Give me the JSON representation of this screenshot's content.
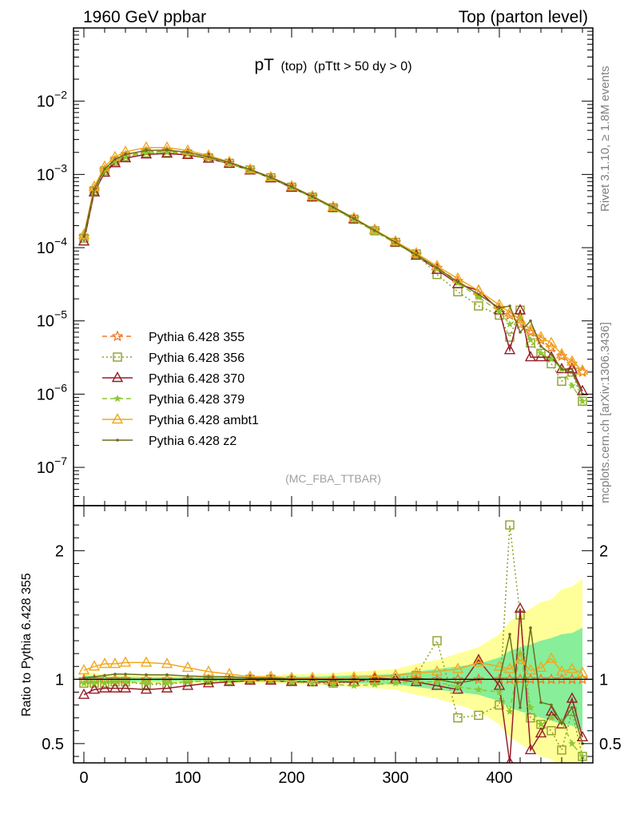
{
  "header": {
    "left": "1960 GeV ppbar",
    "right": "Top (parton level)"
  },
  "plot_title": {
    "main": "pT",
    "sub1": "(top)",
    "sub2": "(pTtt > 50 dy > 0)"
  },
  "side": {
    "rivet": "Rivet 3.1.10, ≥ 1.8M events",
    "mcplots": "mcplots.cern.ch [arXiv:1306.3436]"
  },
  "watermark": "(MC_FBA_TTBAR)",
  "colors": {
    "355": "#f07828",
    "356": "#8ca028",
    "370": "#961e28",
    "379": "#8cc832",
    "ambt1": "#f0a81e",
    "z2": "#6e6e1e",
    "band_yellow": "#ffff99",
    "band_green": "#88ee99"
  },
  "chart_data": [
    {
      "type": "line",
      "panel": "main",
      "yscale": "log",
      "xlim": [
        -10,
        490
      ],
      "ylim": [
        3e-08,
        0.1
      ],
      "yticks": [
        {
          "value": 1e-07,
          "mant": "10",
          "exp": "−7"
        },
        {
          "value": 1e-06,
          "mant": "10",
          "exp": "−6"
        },
        {
          "value": 1e-05,
          "mant": "10",
          "exp": "−5"
        },
        {
          "value": 0.0001,
          "mant": "10",
          "exp": "−4"
        },
        {
          "value": 0.001,
          "mant": "10",
          "exp": "−3"
        },
        {
          "value": 0.01,
          "mant": "10",
          "exp": "−2"
        }
      ],
      "x": [
        0,
        10,
        20,
        30,
        40,
        60,
        80,
        100,
        120,
        140,
        160,
        180,
        200,
        220,
        240,
        260,
        280,
        300,
        320,
        340,
        360,
        380,
        400,
        410,
        420,
        430,
        440,
        450,
        460,
        470,
        480
      ],
      "series": [
        {
          "name": "Pythia 6.428 355",
          "key": "355",
          "line": "dashed",
          "marker": "star",
          "values": [
            0.00014,
            0.00062,
            0.00115,
            0.00155,
            0.0018,
            0.00205,
            0.00208,
            0.00195,
            0.0017,
            0.00143,
            0.00115,
            0.0009,
            0.00068,
            0.0005,
            0.00036,
            0.00025,
            0.000172,
            0.000118,
            8e-05,
            5.3e-05,
            3.5e-05,
            2.3e-05,
            1.5e-05,
            1.2e-05,
            9e-06,
            7e-06,
            5.5e-06,
            4.3e-06,
            3.3e-06,
            2.6e-06,
            2e-06
          ]
        },
        {
          "name": "Pythia 6.428 356",
          "key": "356",
          "line": "dotted",
          "marker": "square",
          "values": [
            0.000135,
            0.0006,
            0.00112,
            0.00152,
            0.00176,
            0.00197,
            0.002,
            0.0019,
            0.00168,
            0.00142,
            0.00115,
            0.0009,
            0.00067,
            0.00049,
            0.00035,
            0.000245,
            0.00017,
            0.000118,
            8.2e-05,
            4.3e-05,
            2.5e-05,
            1.6e-05,
            1.2e-05,
            6e-06,
            1.4e-05,
            5e-06,
            3.6e-06,
            2.6e-06,
            1.5e-06,
            2e-06,
            8e-07
          ]
        },
        {
          "name": "Pythia 6.428 370",
          "key": "370",
          "line": "solid",
          "marker": "triangle",
          "values": [
            0.000122,
            0.00057,
            0.00106,
            0.00143,
            0.00167,
            0.00188,
            0.00193,
            0.00185,
            0.00165,
            0.0014,
            0.00114,
            0.00089,
            0.00066,
            0.00049,
            0.000355,
            0.000245,
            0.000175,
            0.000118,
            7.8e-05,
            5e-05,
            3.2e-05,
            2.6e-05,
            1.4e-05,
            4e-06,
            1.4e-05,
            3.2e-06,
            3.2e-06,
            3.2e-06,
            2.2e-06,
            2.2e-06,
            1.1e-06
          ]
        },
        {
          "name": "Pythia 6.428 379",
          "key": "379",
          "line": "dashed",
          "marker": "smallstar",
          "values": [
            0.000135,
            0.0006,
            0.00112,
            0.00151,
            0.00175,
            0.00198,
            0.00202,
            0.0019,
            0.00167,
            0.00141,
            0.00114,
            0.00089,
            0.00067,
            0.00048,
            0.000345,
            0.00024,
            0.000165,
            0.000115,
            7.8e-05,
            5.2e-05,
            3.3e-05,
            2.1e-05,
            1.35e-05,
            9e-06,
            1.1e-05,
            5.5e-06,
            3.6e-06,
            3e-06,
            2.2e-06,
            1.3e-06,
            8e-07
          ]
        },
        {
          "name": "Pythia 6.428 ambt1",
          "key": "ambt1",
          "line": "solid",
          "marker": "triangle",
          "values": [
            0.00015,
            0.00068,
            0.00128,
            0.00173,
            0.00204,
            0.00233,
            0.00233,
            0.00212,
            0.00181,
            0.00148,
            0.00117,
            0.00092,
            0.00069,
            0.000505,
            0.000362,
            0.000254,
            0.000175,
            0.000122,
            8.4e-05,
            5.6e-05,
            3.8e-05,
            2.6e-05,
            1.65e-05,
            1.3e-05,
            1.05e-05,
            7.5e-06,
            6e-06,
            5e-06,
            3.5e-06,
            2.8e-06,
            2.1e-06
          ]
        },
        {
          "name": "Pythia 6.428 z2",
          "key": "z2",
          "line": "solid",
          "marker": "dot",
          "values": [
            0.000142,
            0.00063,
            0.00119,
            0.00161,
            0.00188,
            0.00212,
            0.00215,
            0.002,
            0.00174,
            0.00146,
            0.00117,
            0.00091,
            0.00068,
            0.0005,
            0.000358,
            0.00025,
            0.000172,
            0.000118,
            8e-05,
            5.3e-05,
            3.4e-05,
            2.3e-05,
            1.5e-05,
            1.6e-05,
            7e-06,
            1e-05,
            4.5e-06,
            3.5e-06,
            2.2e-06,
            2e-06,
            1e-06
          ]
        }
      ]
    },
    {
      "type": "line",
      "panel": "ratio",
      "ylabel": "Ratio to Pythia 6.428 355",
      "xlim": [
        -10,
        490
      ],
      "ylim": [
        0.35,
        2.35
      ],
      "xticks": [
        0,
        100,
        200,
        300,
        400
      ],
      "yticks": [
        0.5,
        1,
        2
      ],
      "x": [
        0,
        10,
        20,
        30,
        40,
        60,
        80,
        100,
        120,
        140,
        160,
        180,
        200,
        220,
        240,
        260,
        280,
        300,
        320,
        340,
        360,
        380,
        400,
        410,
        420,
        430,
        440,
        450,
        460,
        470,
        480
      ],
      "band_yellow_halfwidth": [
        0.06,
        0.05,
        0.04,
        0.04,
        0.04,
        0.03,
        0.03,
        0.03,
        0.03,
        0.03,
        0.03,
        0.03,
        0.04,
        0.04,
        0.05,
        0.06,
        0.07,
        0.08,
        0.12,
        0.15,
        0.2,
        0.25,
        0.35,
        0.45,
        0.5,
        0.55,
        0.6,
        0.62,
        0.7,
        0.72,
        0.78
      ],
      "band_green_halfwidth": [
        0.03,
        0.025,
        0.02,
        0.02,
        0.02,
        0.015,
        0.015,
        0.015,
        0.015,
        0.015,
        0.015,
        0.015,
        0.02,
        0.02,
        0.025,
        0.03,
        0.035,
        0.04,
        0.06,
        0.08,
        0.1,
        0.12,
        0.17,
        0.22,
        0.25,
        0.27,
        0.3,
        0.32,
        0.35,
        0.36,
        0.4
      ],
      "series": [
        {
          "name": "Pythia 6.428 355",
          "key": "355",
          "line": "dashed",
          "marker": "star",
          "values": [
            1,
            1,
            1,
            1,
            1,
            1,
            1,
            1,
            1,
            1,
            1,
            1,
            1,
            1,
            1,
            1,
            1,
            1,
            1,
            1,
            1,
            1,
            1,
            1,
            1,
            1,
            1,
            1,
            1,
            1,
            1
          ]
        },
        {
          "name": "Pythia 6.428 356",
          "key": "356",
          "line": "dotted",
          "marker": "square",
          "values": [
            0.97,
            0.97,
            0.97,
            0.98,
            0.98,
            0.96,
            0.96,
            0.98,
            0.99,
            0.99,
            1,
            1,
            0.99,
            0.98,
            0.97,
            0.98,
            0.99,
            1,
            1.03,
            1.3,
            0.7,
            0.72,
            0.8,
            2.2,
            1.5,
            0.7,
            0.65,
            0.6,
            0.45,
            0.75,
            0.4
          ]
        },
        {
          "name": "Pythia 6.428 370",
          "key": "370",
          "line": "solid",
          "marker": "triangle",
          "values": [
            0.88,
            0.92,
            0.93,
            0.93,
            0.93,
            0.92,
            0.93,
            0.95,
            0.97,
            0.98,
            0.99,
            0.99,
            0.98,
            0.98,
            0.98,
            0.98,
            1.01,
            1,
            0.98,
            0.95,
            0.92,
            1.15,
            0.95,
            0.35,
            1.55,
            0.45,
            0.58,
            0.75,
            0.65,
            0.85,
            0.55
          ]
        },
        {
          "name": "Pythia 6.428 379",
          "key": "379",
          "line": "dashed",
          "marker": "smallstar",
          "values": [
            0.97,
            0.97,
            0.97,
            0.98,
            0.98,
            0.97,
            0.97,
            0.98,
            0.99,
            0.99,
            0.99,
            0.99,
            0.98,
            0.97,
            0.96,
            0.95,
            0.96,
            0.97,
            0.98,
            0.98,
            0.94,
            0.92,
            0.9,
            0.75,
            1.2,
            0.78,
            0.65,
            0.7,
            0.67,
            0.5,
            0.4
          ]
        },
        {
          "name": "Pythia 6.428 ambt1",
          "key": "ambt1",
          "line": "solid",
          "marker": "triangle",
          "values": [
            1.07,
            1.1,
            1.12,
            1.12,
            1.13,
            1.13,
            1.12,
            1.09,
            1.06,
            1.04,
            1.02,
            1.02,
            1.01,
            1.01,
            1.005,
            1.015,
            1.02,
            1.03,
            1.05,
            1.06,
            1.08,
            1.13,
            1.1,
            1.08,
            1.15,
            1.07,
            1.09,
            1.16,
            1.06,
            1.08,
            1.05
          ]
        },
        {
          "name": "Pythia 6.428 z2",
          "key": "z2",
          "line": "solid",
          "marker": "dot",
          "values": [
            1.01,
            1.02,
            1.03,
            1.04,
            1.04,
            1.035,
            1.035,
            1.025,
            1.02,
            1.02,
            1.01,
            1.01,
            1,
            1,
            0.995,
            1,
            1,
            1,
            1.005,
            1,
            0.97,
            1,
            1,
            1.35,
            0.78,
            1.4,
            0.82,
            0.8,
            0.66,
            0.78,
            0.5
          ]
        }
      ]
    }
  ]
}
